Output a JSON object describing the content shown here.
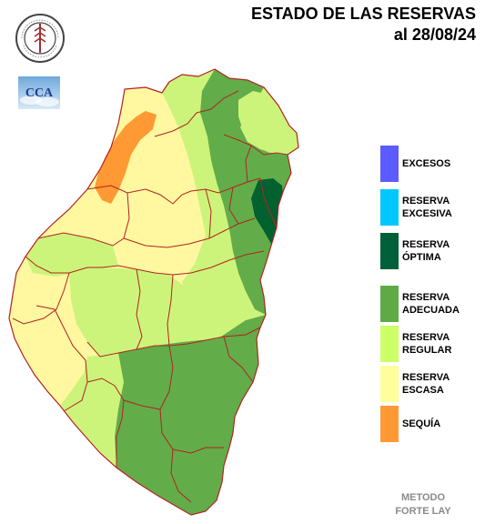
{
  "header": {
    "title_line1": "ESTADO DE LAS RESERVAS",
    "title_line2": "al 28/08/24"
  },
  "logos": {
    "seal_text": "BOLSA DE CEREALES DE ENTRE RIOS",
    "cca_text": "CCA"
  },
  "legend": [
    {
      "label": "EXCESOS",
      "color": "#5b5bff"
    },
    {
      "label": "RESERVA\nEXCESIVA",
      "color": "#00c8ff"
    },
    {
      "label": "RESERVA\nÓPTIMA",
      "color": "#00603a"
    },
    {
      "label": "RESERVA\nADECUADA",
      "color": "#5eab46"
    },
    {
      "label": "RESERVA\nREGULAR",
      "color": "#ccff66"
    },
    {
      "label": "RESERVA\nESCASA",
      "color": "#ffff99"
    },
    {
      "label": "SEQUÍA",
      "color": "#ff9933"
    }
  ],
  "colors": {
    "border": "#b22222",
    "escasa": "#fff8a0",
    "regular": "#cdf47a",
    "adecuada": "#62ad49",
    "optima": "#03602f",
    "sequia": "#ff9933"
  },
  "footer": {
    "method": "METODO\nFORTE LAY"
  }
}
